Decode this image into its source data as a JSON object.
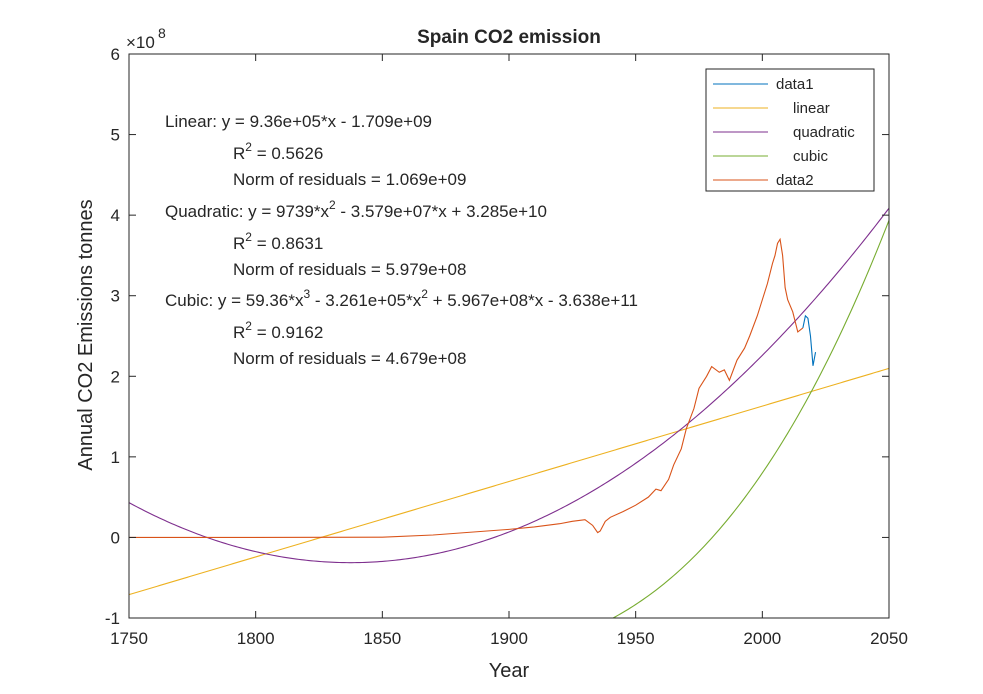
{
  "chart_data": {
    "type": "line",
    "title": "Spain CO2 emission",
    "xlabel": "Year",
    "ylabel": "Annual CO2 Emissions tonnes",
    "xlim": [
      1750,
      2050
    ],
    "ylim": [
      -1,
      6
    ],
    "y_multiplier_label": "×10",
    "y_multiplier_exp": "8",
    "x_ticks": [
      1750,
      1800,
      1850,
      1900,
      1950,
      2000,
      2050
    ],
    "y_ticks": [
      -1,
      0,
      1,
      2,
      3,
      4,
      5,
      6
    ],
    "grid": false,
    "legend_position": "top-right",
    "legend": [
      {
        "label": "data1",
        "color": "#0072BD"
      },
      {
        "label": "linear",
        "color": "#EDB120"
      },
      {
        "label": "quadratic",
        "color": "#7E2F8E"
      },
      {
        "label": "cubic",
        "color": "#77AC30"
      },
      {
        "label": "data2",
        "color": "#D95319"
      }
    ],
    "series": [
      {
        "name": "data1",
        "color": "#0072BD",
        "x": [
          2016,
          2017,
          2018,
          2019,
          2020,
          2021
        ],
        "y": [
          2.6,
          2.75,
          2.72,
          2.5,
          2.13,
          2.3
        ]
      },
      {
        "name": "data2",
        "color": "#D95319",
        "x": [
          1750,
          1800,
          1850,
          1870,
          1900,
          1910,
          1920,
          1925,
          1930,
          1933,
          1935,
          1936,
          1938,
          1940,
          1945,
          1950,
          1955,
          1958,
          1960,
          1963,
          1965,
          1968,
          1970,
          1973,
          1975,
          1978,
          1980,
          1983,
          1985,
          1987,
          1990,
          1993,
          1995,
          1998,
          2000,
          2002,
          2004,
          2005,
          2006,
          2007,
          2008,
          2009,
          2010,
          2012,
          2014,
          2016
        ],
        "y": [
          0.0,
          0.0,
          0.003,
          0.03,
          0.1,
          0.13,
          0.17,
          0.2,
          0.22,
          0.15,
          0.06,
          0.08,
          0.2,
          0.25,
          0.32,
          0.4,
          0.5,
          0.6,
          0.58,
          0.72,
          0.9,
          1.1,
          1.35,
          1.6,
          1.85,
          2.0,
          2.12,
          2.05,
          2.08,
          1.95,
          2.2,
          2.35,
          2.5,
          2.75,
          2.95,
          3.15,
          3.4,
          3.5,
          3.65,
          3.7,
          3.5,
          3.1,
          2.95,
          2.8,
          2.55,
          2.6
        ]
      }
    ],
    "fits": {
      "linear": {
        "coeffs": [
          936000.0,
          -1709000000.0
        ]
      },
      "quadratic": {
        "coeffs": [
          9739,
          -35790000.0,
          32850000000.0
        ]
      },
      "cubic": {
        "coeffs": [
          59.36,
          -326100.0,
          596700000.0,
          -363800000000.0
        ]
      }
    },
    "annotations": [
      {
        "id": "lin1a",
        "text": "Linear:  y = 9.36e+05*x - 1.709e+09"
      },
      {
        "id": "lin2a",
        "text": "R",
        "sup": "2",
        "rest": " = 0.5626"
      },
      {
        "id": "lin3a",
        "text": "Norm of residuals = 1.069e+09"
      },
      {
        "id": "quad1",
        "text": "Quadratic:  y = 9739*x",
        "sup": "2",
        "rest": " - 3.579e+07*x + 3.285e+10"
      },
      {
        "id": "quad2",
        "text": "R",
        "sup": "2",
        "rest": " = 0.8631"
      },
      {
        "id": "quad3",
        "text": "Norm of residuals = 5.979e+08"
      },
      {
        "id": "cub1",
        "text": "Cubic:  y = 59.36*x",
        "sup": "3",
        "rest": " - 3.261e+05*x",
        "sup2": "2",
        "rest2": " + 5.967e+08*x - 3.638e+11"
      },
      {
        "id": "cub2",
        "text": "R",
        "sup": "2",
        "rest": " = 0.9162"
      },
      {
        "id": "cub3",
        "text": "Norm of residuals = 4.679e+08"
      }
    ]
  }
}
